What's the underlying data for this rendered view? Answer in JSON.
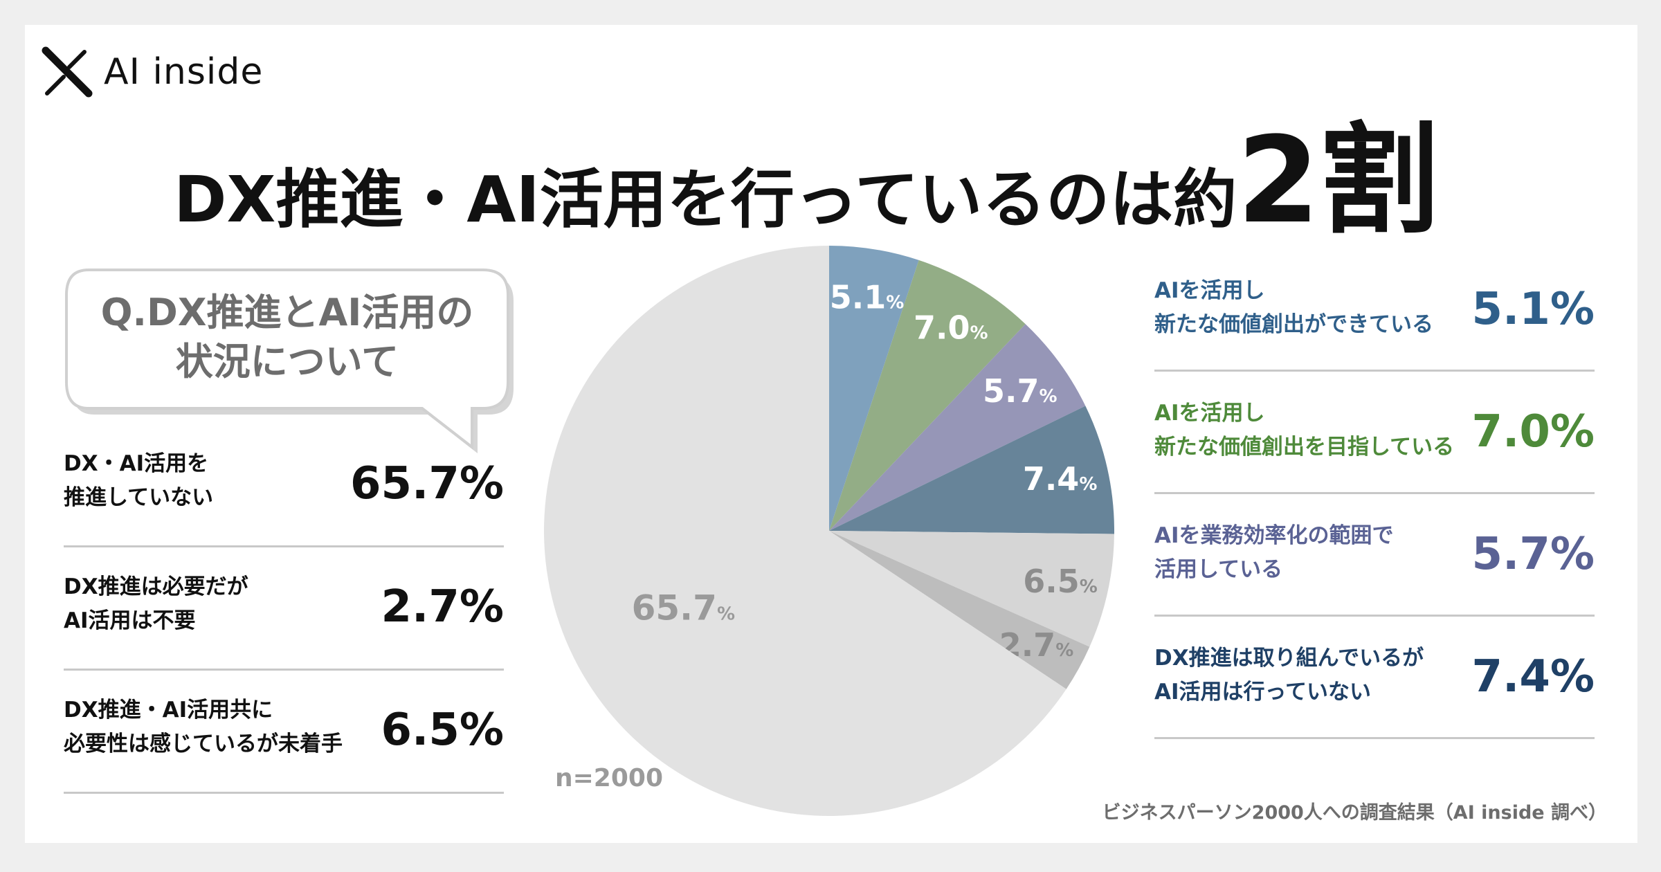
{
  "brand": {
    "name": "AI inside"
  },
  "title": {
    "main": "DX推進・AI活用を行っているのは約",
    "emph": "2割"
  },
  "question": {
    "line1": "Q.DX推進とAI活用の",
    "line2": "状況について"
  },
  "sample_note": "n=2000",
  "source_note": "ビジネスパーソン2000人への調査結果（AI inside 調べ）",
  "left_items": [
    {
      "line1": "DX・AI活用を",
      "line2": "推進していない",
      "value": "65.7%"
    },
    {
      "line1": "DX推進は必要だが",
      "line2": "AI活用は不要",
      "value": "2.7%"
    },
    {
      "line1": "DX推進・AI活用共に",
      "line2": "必要性は感じているが未着手",
      "value": "6.5%"
    }
  ],
  "right_items": [
    {
      "line1": "AIを活用し",
      "line2": "新たな価値創出ができている",
      "value": "5.1%",
      "color": "#2f5f8a"
    },
    {
      "line1": "AIを活用し",
      "line2": "新たな価値創出を目指している",
      "value": "7.0%",
      "color": "#4e8a3a"
    },
    {
      "line1": "AIを業務効率化の範囲で",
      "line2": "活用している",
      "value": "5.7%",
      "color": "#5a6294"
    },
    {
      "line1": "DX推進は取り組んでいるが",
      "line2": "AI活用は行っていない",
      "value": "7.4%",
      "color": "#1f4066"
    }
  ],
  "chart_data": {
    "type": "pie",
    "start": "12 o'clock",
    "direction": "clockwise",
    "unit": "%",
    "slices": [
      {
        "label": "AIを活用し新たな価値創出ができている",
        "value": 5.1,
        "color": "#7fa1bd",
        "text_color": "#ffffff"
      },
      {
        "label": "AIを活用し新たな価値創出を目指している",
        "value": 7.0,
        "color": "#93ad86",
        "text_color": "#ffffff"
      },
      {
        "label": "AIを業務効率化の範囲で活用している",
        "value": 5.7,
        "color": "#9696b7",
        "text_color": "#ffffff"
      },
      {
        "label": "DX推進は取り組んでいるがAI活用は行っていない",
        "value": 7.4,
        "color": "#678499",
        "text_color": "#ffffff"
      },
      {
        "label": "DX推進・AI活用共に必要性は感じているが未着手",
        "value": 6.5,
        "color": "#d6d6d6",
        "text_color": "#8d8d8d"
      },
      {
        "label": "DX推進は必要だがAI活用は不要",
        "value": 2.7,
        "color": "#bdbdbd",
        "text_color": "#8d8d8d"
      },
      {
        "label": "DX・AI活用を推進していない",
        "value": 65.7,
        "color": "#e2e2e2",
        "text_color": "#9a9a9a"
      }
    ]
  }
}
